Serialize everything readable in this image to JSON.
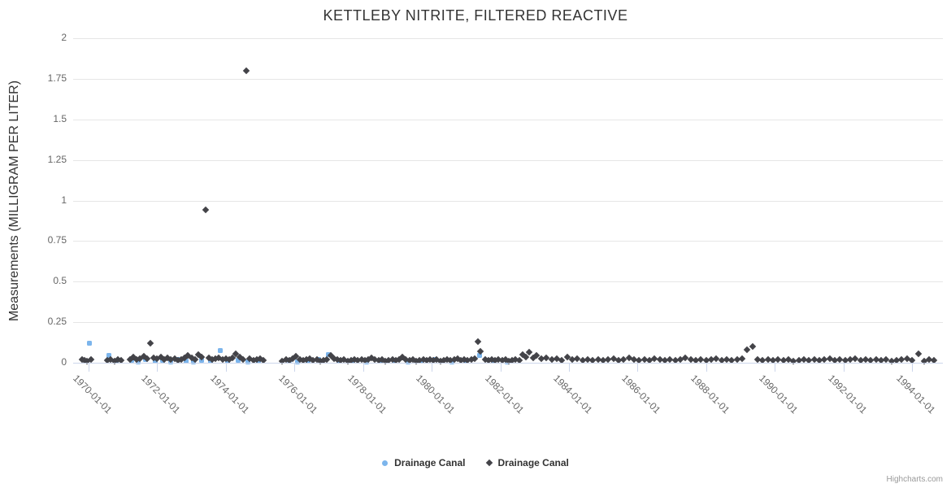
{
  "chart": {
    "credits": "Highcharts.com"
  },
  "chart_data": {
    "type": "scatter",
    "title": "KETTLEBY NITRITE, FILTERED REACTIVE",
    "xlabel": "",
    "ylabel": "Measurements (MILLIGRAM PER LITER)",
    "grid": "horizontal-only",
    "legend_position": "bottom-center",
    "x_axis": {
      "type": "datetime",
      "min_year": 1969.55,
      "max_year": 1994.9,
      "tick_years": [
        1970,
        1972,
        1974,
        1976,
        1978,
        1980,
        1982,
        1984,
        1986,
        1988,
        1990,
        1992,
        1994
      ],
      "tick_labels": [
        "1970-01-01",
        "1972-01-01",
        "1974-01-01",
        "1976-01-01",
        "1978-01-01",
        "1980-01-01",
        "1982-01-01",
        "1984-01-01",
        "1986-01-01",
        "1988-01-01",
        "1990-01-01",
        "1992-01-01",
        "1994-01-01"
      ],
      "label_rotation_deg": 45
    },
    "y_axis": {
      "min": 0,
      "max": 2,
      "ticks": [
        0,
        0.25,
        0.5,
        0.75,
        1,
        1.25,
        1.5,
        1.75,
        2
      ],
      "tick_labels": [
        "0",
        "0.25",
        "0.5",
        "0.75",
        "1",
        "1.25",
        "1.5",
        "1.75",
        "2"
      ]
    },
    "series": [
      {
        "name": "Drainage Canal",
        "marker": "square",
        "color": "#7cb5ec",
        "points": [
          [
            1970.02,
            0.12
          ],
          [
            1970.6,
            0.045
          ],
          [
            1970.8,
            0.01
          ],
          [
            1971.25,
            0.015
          ],
          [
            1971.45,
            0.005
          ],
          [
            1971.65,
            0.02
          ],
          [
            1971.95,
            0.01
          ],
          [
            1972.15,
            0.015
          ],
          [
            1972.4,
            0.005
          ],
          [
            1972.6,
            0.02
          ],
          [
            1972.85,
            0.01
          ],
          [
            1973.05,
            0.005
          ],
          [
            1973.3,
            0.015
          ],
          [
            1973.55,
            0.01
          ],
          [
            1973.85,
            0.075
          ],
          [
            1974.05,
            0.01
          ],
          [
            1974.35,
            0.015
          ],
          [
            1974.65,
            0.005
          ],
          [
            1974.95,
            0.01
          ],
          [
            1975.85,
            0.015
          ],
          [
            1976.1,
            0.005
          ],
          [
            1976.4,
            0.01
          ],
          [
            1976.7,
            0.02
          ],
          [
            1977.0,
            0.05
          ],
          [
            1977.3,
            0.01
          ],
          [
            1977.7,
            0.015
          ],
          [
            1978.1,
            0.005
          ],
          [
            1978.5,
            0.01
          ],
          [
            1978.9,
            0.015
          ],
          [
            1979.3,
            0.005
          ],
          [
            1979.7,
            0.01
          ],
          [
            1980.1,
            0.02
          ],
          [
            1980.6,
            0.005
          ],
          [
            1981.0,
            0.01
          ],
          [
            1981.4,
            0.045
          ],
          [
            1981.8,
            0.015
          ],
          [
            1982.2,
            0.005
          ]
        ]
      },
      {
        "name": "Drainage Canal",
        "marker": "diamond",
        "color": "#434348",
        "points": [
          [
            1969.8,
            0.02
          ],
          [
            1969.88,
            0.015
          ],
          [
            1969.96,
            0.01
          ],
          [
            1970.06,
            0.02
          ],
          [
            1970.55,
            0.015
          ],
          [
            1970.65,
            0.02
          ],
          [
            1970.75,
            0.01
          ],
          [
            1970.85,
            0.02
          ],
          [
            1970.95,
            0.015
          ],
          [
            1971.2,
            0.02
          ],
          [
            1971.3,
            0.035
          ],
          [
            1971.4,
            0.02
          ],
          [
            1971.5,
            0.025
          ],
          [
            1971.6,
            0.04
          ],
          [
            1971.7,
            0.025
          ],
          [
            1971.8,
            0.12
          ],
          [
            1971.9,
            0.03
          ],
          [
            1972.0,
            0.025
          ],
          [
            1972.1,
            0.035
          ],
          [
            1972.2,
            0.02
          ],
          [
            1972.3,
            0.03
          ],
          [
            1972.4,
            0.02
          ],
          [
            1972.5,
            0.025
          ],
          [
            1972.6,
            0.015
          ],
          [
            1972.7,
            0.02
          ],
          [
            1972.8,
            0.03
          ],
          [
            1972.9,
            0.045
          ],
          [
            1973.0,
            0.03
          ],
          [
            1973.1,
            0.02
          ],
          [
            1973.2,
            0.05
          ],
          [
            1973.3,
            0.035
          ],
          [
            1973.4,
            0.94
          ],
          [
            1973.5,
            0.03
          ],
          [
            1973.6,
            0.02
          ],
          [
            1973.7,
            0.025
          ],
          [
            1973.8,
            0.03
          ],
          [
            1973.9,
            0.02
          ],
          [
            1974.0,
            0.025
          ],
          [
            1974.1,
            0.02
          ],
          [
            1974.2,
            0.03
          ],
          [
            1974.3,
            0.055
          ],
          [
            1974.4,
            0.035
          ],
          [
            1974.5,
            0.02
          ],
          [
            1974.6,
            1.8
          ],
          [
            1974.7,
            0.025
          ],
          [
            1974.8,
            0.015
          ],
          [
            1974.9,
            0.02
          ],
          [
            1975.0,
            0.025
          ],
          [
            1975.1,
            0.015
          ],
          [
            1975.65,
            0.01
          ],
          [
            1975.75,
            0.02
          ],
          [
            1975.85,
            0.015
          ],
          [
            1975.95,
            0.025
          ],
          [
            1976.05,
            0.04
          ],
          [
            1976.15,
            0.02
          ],
          [
            1976.25,
            0.015
          ],
          [
            1976.35,
            0.02
          ],
          [
            1976.45,
            0.025
          ],
          [
            1976.55,
            0.015
          ],
          [
            1976.65,
            0.02
          ],
          [
            1976.75,
            0.01
          ],
          [
            1976.85,
            0.015
          ],
          [
            1976.95,
            0.02
          ],
          [
            1977.05,
            0.045
          ],
          [
            1977.15,
            0.025
          ],
          [
            1977.25,
            0.02
          ],
          [
            1977.35,
            0.015
          ],
          [
            1977.45,
            0.02
          ],
          [
            1977.55,
            0.01
          ],
          [
            1977.65,
            0.015
          ],
          [
            1977.75,
            0.02
          ],
          [
            1977.85,
            0.015
          ],
          [
            1977.95,
            0.02
          ],
          [
            1978.05,
            0.015
          ],
          [
            1978.15,
            0.02
          ],
          [
            1978.25,
            0.03
          ],
          [
            1978.35,
            0.02
          ],
          [
            1978.45,
            0.015
          ],
          [
            1978.55,
            0.02
          ],
          [
            1978.65,
            0.01
          ],
          [
            1978.75,
            0.015
          ],
          [
            1978.85,
            0.02
          ],
          [
            1978.95,
            0.015
          ],
          [
            1979.05,
            0.02
          ],
          [
            1979.15,
            0.035
          ],
          [
            1979.25,
            0.02
          ],
          [
            1979.35,
            0.015
          ],
          [
            1979.45,
            0.02
          ],
          [
            1979.55,
            0.01
          ],
          [
            1979.65,
            0.015
          ],
          [
            1979.75,
            0.02
          ],
          [
            1979.85,
            0.015
          ],
          [
            1979.95,
            0.02
          ],
          [
            1980.05,
            0.015
          ],
          [
            1980.15,
            0.02
          ],
          [
            1980.25,
            0.01
          ],
          [
            1980.35,
            0.015
          ],
          [
            1980.45,
            0.02
          ],
          [
            1980.55,
            0.015
          ],
          [
            1980.65,
            0.02
          ],
          [
            1980.75,
            0.025
          ],
          [
            1980.85,
            0.015
          ],
          [
            1980.95,
            0.02
          ],
          [
            1981.05,
            0.015
          ],
          [
            1981.15,
            0.02
          ],
          [
            1981.25,
            0.025
          ],
          [
            1981.35,
            0.13
          ],
          [
            1981.42,
            0.07
          ],
          [
            1981.55,
            0.02
          ],
          [
            1981.65,
            0.015
          ],
          [
            1981.75,
            0.02
          ],
          [
            1981.85,
            0.015
          ],
          [
            1981.95,
            0.02
          ],
          [
            1982.05,
            0.015
          ],
          [
            1982.15,
            0.02
          ],
          [
            1982.25,
            0.01
          ],
          [
            1982.35,
            0.015
          ],
          [
            1982.45,
            0.02
          ],
          [
            1982.55,
            0.015
          ],
          [
            1982.65,
            0.05
          ],
          [
            1982.75,
            0.035
          ],
          [
            1982.85,
            0.065
          ],
          [
            1982.95,
            0.03
          ],
          [
            1983.05,
            0.045
          ],
          [
            1983.2,
            0.025
          ],
          [
            1983.35,
            0.03
          ],
          [
            1983.5,
            0.02
          ],
          [
            1983.65,
            0.025
          ],
          [
            1983.8,
            0.015
          ],
          [
            1983.95,
            0.035
          ],
          [
            1984.1,
            0.02
          ],
          [
            1984.25,
            0.025
          ],
          [
            1984.4,
            0.015
          ],
          [
            1984.55,
            0.02
          ],
          [
            1984.7,
            0.015
          ],
          [
            1984.85,
            0.02
          ],
          [
            1985.0,
            0.015
          ],
          [
            1985.15,
            0.02
          ],
          [
            1985.3,
            0.025
          ],
          [
            1985.45,
            0.015
          ],
          [
            1985.6,
            0.02
          ],
          [
            1985.75,
            0.03
          ],
          [
            1985.9,
            0.02
          ],
          [
            1986.05,
            0.015
          ],
          [
            1986.2,
            0.02
          ],
          [
            1986.35,
            0.015
          ],
          [
            1986.5,
            0.025
          ],
          [
            1986.65,
            0.02
          ],
          [
            1986.8,
            0.015
          ],
          [
            1986.95,
            0.02
          ],
          [
            1987.1,
            0.015
          ],
          [
            1987.25,
            0.02
          ],
          [
            1987.4,
            0.03
          ],
          [
            1987.55,
            0.02
          ],
          [
            1987.7,
            0.015
          ],
          [
            1987.85,
            0.02
          ],
          [
            1988.0,
            0.015
          ],
          [
            1988.15,
            0.02
          ],
          [
            1988.3,
            0.025
          ],
          [
            1988.45,
            0.015
          ],
          [
            1988.6,
            0.02
          ],
          [
            1988.75,
            0.015
          ],
          [
            1988.9,
            0.02
          ],
          [
            1989.05,
            0.025
          ],
          [
            1989.2,
            0.08
          ],
          [
            1989.35,
            0.1
          ],
          [
            1989.5,
            0.02
          ],
          [
            1989.65,
            0.015
          ],
          [
            1989.8,
            0.02
          ],
          [
            1989.95,
            0.015
          ],
          [
            1990.1,
            0.02
          ],
          [
            1990.25,
            0.015
          ],
          [
            1990.4,
            0.02
          ],
          [
            1990.55,
            0.01
          ],
          [
            1990.7,
            0.015
          ],
          [
            1990.85,
            0.02
          ],
          [
            1991.0,
            0.015
          ],
          [
            1991.15,
            0.02
          ],
          [
            1991.3,
            0.015
          ],
          [
            1991.45,
            0.02
          ],
          [
            1991.6,
            0.025
          ],
          [
            1991.75,
            0.015
          ],
          [
            1991.9,
            0.02
          ],
          [
            1992.05,
            0.015
          ],
          [
            1992.2,
            0.02
          ],
          [
            1992.35,
            0.025
          ],
          [
            1992.5,
            0.015
          ],
          [
            1992.65,
            0.02
          ],
          [
            1992.8,
            0.015
          ],
          [
            1992.95,
            0.02
          ],
          [
            1993.1,
            0.015
          ],
          [
            1993.25,
            0.02
          ],
          [
            1993.4,
            0.01
          ],
          [
            1993.55,
            0.015
          ],
          [
            1993.7,
            0.02
          ],
          [
            1993.85,
            0.025
          ],
          [
            1994.0,
            0.015
          ],
          [
            1994.2,
            0.055
          ],
          [
            1994.35,
            0.01
          ],
          [
            1994.5,
            0.02
          ],
          [
            1994.65,
            0.015
          ]
        ]
      }
    ]
  }
}
